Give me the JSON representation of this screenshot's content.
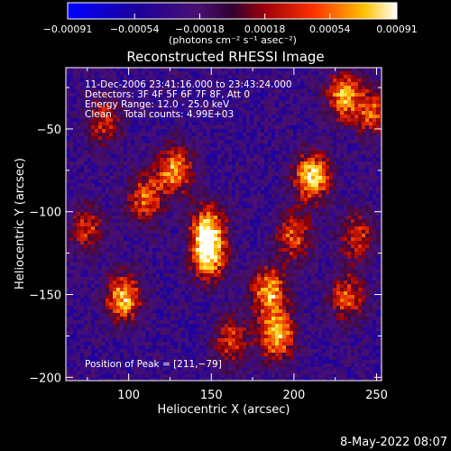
{
  "chart_data": {
    "type": "heatmap",
    "title": "Reconstructed RHESSI Image",
    "xlabel": "Heliocentric X (arcsec)",
    "ylabel": "Heliocentric Y (arcsec)",
    "xlim": [
      62,
      253
    ],
    "ylim": [
      -202,
      -13
    ],
    "x_ticks": [
      100,
      150,
      200,
      250
    ],
    "x_tick_labels": [
      "100",
      "150",
      "200",
      "250"
    ],
    "y_ticks": [
      -50,
      -100,
      -150,
      -200
    ],
    "y_tick_labels": [
      "−50",
      "−100",
      "−150",
      "−200"
    ],
    "colorbar": {
      "range": [
        -0.00091,
        0.00091
      ],
      "ticks": [
        -0.00091,
        -0.00054,
        -0.00018,
        0.00018,
        0.00054,
        0.00091
      ],
      "tick_labels": [
        "−0.00091",
        "−0.00054",
        "−0.00018",
        "0.00018",
        "0.00054",
        "0.00091"
      ],
      "units": "(photons cm⁻² s⁻¹ asec⁻²)"
    },
    "annotations": [
      "11-Dec-2006 23:41:16.000 to 23:43:24.000",
      "Detectors: 3F 4F 5F 6F 7F 8F, Att 0",
      "Energy Range: 12.0 - 25.0 keV",
      "Clean    Total counts: 4.99E+03"
    ],
    "peak_label": "Position of Peak = [211,−79]",
    "peak": [
      211,
      -79
    ],
    "sources": [
      {
        "x": 211,
        "y": -79,
        "value": 0.00091
      },
      {
        "x": 128,
        "y": -75,
        "value": 0.0007
      },
      {
        "x": 148,
        "y": -110,
        "value": 0.00075
      },
      {
        "x": 148,
        "y": -128,
        "value": 0.00078
      },
      {
        "x": 97,
        "y": -152,
        "value": 0.0008
      },
      {
        "x": 110,
        "y": -92,
        "value": 0.00055
      },
      {
        "x": 185,
        "y": -148,
        "value": 0.00075
      },
      {
        "x": 230,
        "y": -30,
        "value": 0.0007
      },
      {
        "x": 248,
        "y": -40,
        "value": 0.0005
      },
      {
        "x": 190,
        "y": -175,
        "value": 0.0008
      },
      {
        "x": 238,
        "y": -115,
        "value": 0.00045
      },
      {
        "x": 232,
        "y": -152,
        "value": 0.0005
      },
      {
        "x": 162,
        "y": -178,
        "value": 0.00045
      },
      {
        "x": 75,
        "y": -110,
        "value": 0.0004
      },
      {
        "x": 85,
        "y": -45,
        "value": 0.0004
      },
      {
        "x": 200,
        "y": -115,
        "value": 0.0005
      }
    ]
  },
  "footer": {
    "timestamp": "8-May-2022 08:07"
  }
}
